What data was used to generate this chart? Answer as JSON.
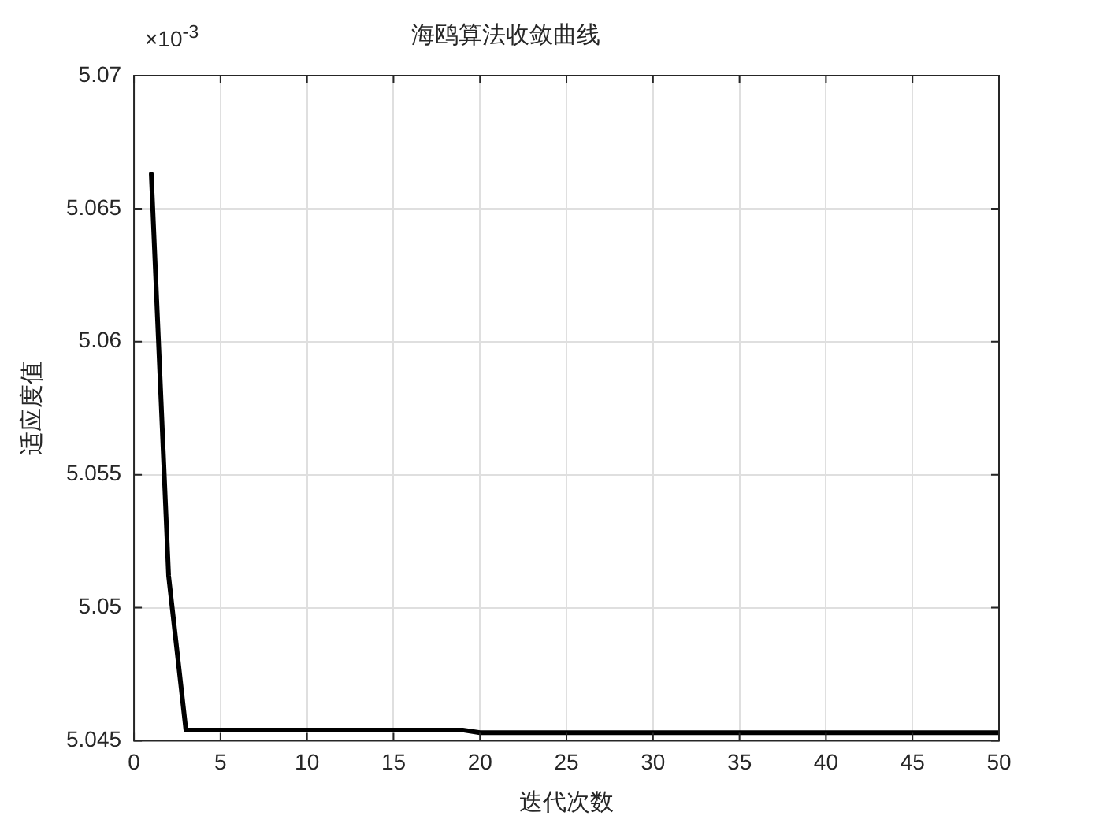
{
  "chart_data": {
    "type": "line",
    "title": "海鸥算法收敛曲线",
    "xlabel": "迭代次数",
    "ylabel": "适应度值",
    "annotations": [
      "×10$^{-3}$"
    ],
    "x": [
      1,
      2,
      3,
      4,
      5,
      6,
      7,
      8,
      9,
      10,
      11,
      12,
      13,
      14,
      15,
      16,
      17,
      18,
      19,
      20,
      21,
      22,
      23,
      24,
      25,
      26,
      27,
      28,
      29,
      30,
      31,
      32,
      33,
      34,
      35,
      36,
      37,
      38,
      39,
      40,
      41,
      42,
      43,
      44,
      45,
      46,
      47,
      48,
      49,
      50
    ],
    "series": [
      {
        "color": "#000000",
        "values": [
          5.0663,
          5.0512,
          5.0454,
          5.0454,
          5.0454,
          5.0454,
          5.0454,
          5.0454,
          5.0454,
          5.0454,
          5.0454,
          5.0454,
          5.0454,
          5.0454,
          5.0454,
          5.0454,
          5.0454,
          5.0454,
          5.0454,
          5.0453,
          5.0453,
          5.0453,
          5.0453,
          5.0453,
          5.0453,
          5.0453,
          5.0453,
          5.0453,
          5.0453,
          5.0453,
          5.0453,
          5.0453,
          5.0453,
          5.0453,
          5.0453,
          5.0453,
          5.0453,
          5.0453,
          5.0453,
          5.0453,
          5.0453,
          5.0453,
          5.0453,
          5.0453,
          5.0453,
          5.0453,
          5.0453,
          5.0453,
          5.0453,
          5.0453
        ]
      }
    ],
    "xlim": [
      0,
      50
    ],
    "xticks": [
      0,
      5,
      10,
      15,
      20,
      25,
      30,
      35,
      40,
      45,
      50
    ],
    "ylim": [
      5.045,
      5.07
    ],
    "yticks": [
      5.045,
      5.05,
      5.055,
      5.06,
      5.065,
      5.07
    ],
    "grid": true,
    "legend": false,
    "marker": "none",
    "line_style": "solid"
  }
}
